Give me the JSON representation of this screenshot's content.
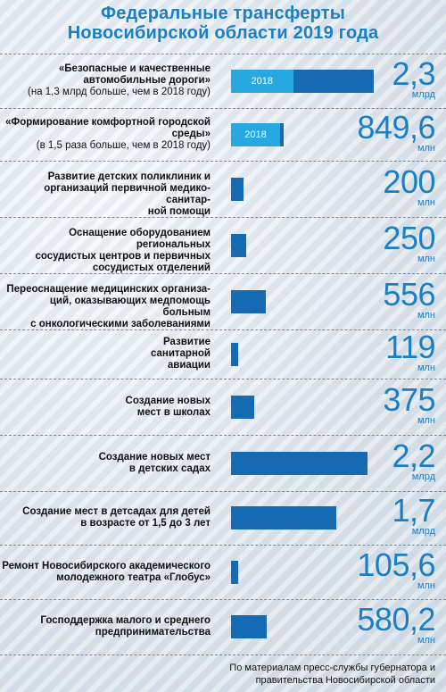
{
  "title_line1": "Федеральные трансферты",
  "title_line2": "Новосибирской области 2019 года",
  "footer_line1": "По материалам пресс-службы губернатора и",
  "footer_line2": "правительства Новосибирской области",
  "colors": {
    "title": "#1b7fc4",
    "bar": "#1669b3",
    "bar_prev": "#27a8e0"
  },
  "chart_data": {
    "type": "bar",
    "title": "Федеральные трансферты Новосибирской области 2019 года",
    "items": [
      {
        "label": "«Безопасные и качественные автомобильные дороги»",
        "note": "(на 1,3 млрд больше, чем в 2018 году)",
        "value": 2.3,
        "value_text": "2,3",
        "unit": "млрд",
        "prev_label": "2018",
        "prev_value": 1.0
      },
      {
        "label": "«Формирование комфортной городской среды»",
        "note": "(в 1,5 раза больше, чем в 2018 году)",
        "value": 849.6,
        "value_text": "849,6",
        "unit": "млн",
        "prev_label": "2018",
        "prev_value": 566.4
      },
      {
        "label": "Развитие детских поликлиник и организаций первичной медико-санитарной помощи",
        "value": 200,
        "value_text": "200",
        "unit": "млн"
      },
      {
        "label": "Оснащение оборудованием региональных сосудистых центров и первичных сосудистых отделений",
        "value": 250,
        "value_text": "250",
        "unit": "млн"
      },
      {
        "label": "Переоснащение медицинских организаций, оказывающих медпомощь больным с онкологическими заболеваниями",
        "value": 556,
        "value_text": "556",
        "unit": "млн"
      },
      {
        "label": "Развитие санитарной авиации",
        "value": 119,
        "value_text": "119",
        "unit": "млн"
      },
      {
        "label": "Создание новых мест в школах",
        "value": 375,
        "value_text": "375",
        "unit": "млн"
      },
      {
        "label": "Создание новых мест в детских садах",
        "value": 2.2,
        "value_text": "2,2",
        "unit": "млрд"
      },
      {
        "label": "Создание мест в детсадах для детей в возрасте от 1,5 до 3 лет",
        "value": 1.7,
        "value_text": "1,7",
        "unit": "млрд"
      },
      {
        "label": "Ремонт Новосибирского академического молодежного театра «Глобус»",
        "value": 105.6,
        "value_text": "105,6",
        "unit": "млн"
      },
      {
        "label": "Господдержка малого и среднего предпринимательства",
        "value": 580.2,
        "value_text": "580,2",
        "unit": "млн"
      }
    ]
  }
}
